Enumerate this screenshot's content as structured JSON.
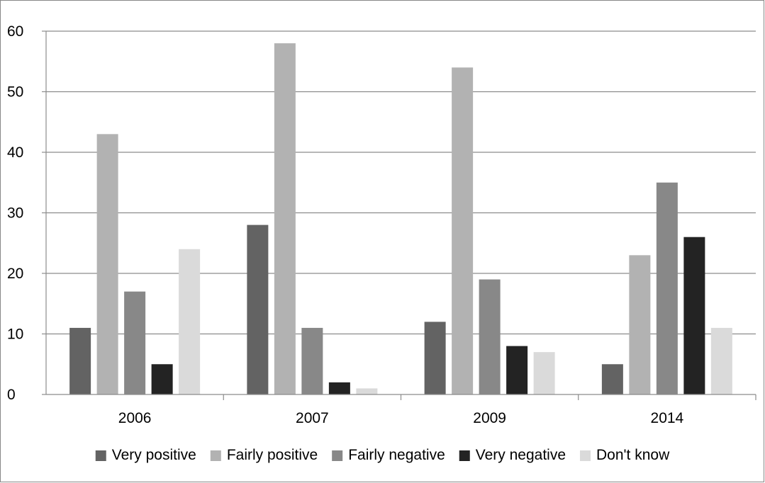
{
  "chart_data": {
    "type": "bar",
    "title": "",
    "xlabel": "",
    "ylabel": "",
    "categories": [
      "2006",
      "2007",
      "2009",
      "2014"
    ],
    "series": [
      {
        "name": "Very positive",
        "values": [
          11,
          28,
          12,
          5
        ],
        "color": "#636363"
      },
      {
        "name": "Fairly positive",
        "values": [
          43,
          58,
          54,
          23
        ],
        "color": "#b2b2b2"
      },
      {
        "name": "Fairly negative",
        "values": [
          17,
          11,
          19,
          35
        ],
        "color": "#888888"
      },
      {
        "name": "Very negative",
        "values": [
          5,
          2,
          8,
          26
        ],
        "color": "#232323"
      },
      {
        "name": "Don't know",
        "values": [
          24,
          1,
          7,
          11
        ],
        "color": "#dadada"
      }
    ],
    "ylim": [
      0,
      60
    ],
    "yticks": [
      0,
      10,
      20,
      30,
      40,
      50,
      60
    ],
    "ytick_labels": [
      "0",
      "10",
      "20",
      "30",
      "40",
      "50",
      "60"
    ],
    "grid": true,
    "legend_position": "bottom"
  }
}
